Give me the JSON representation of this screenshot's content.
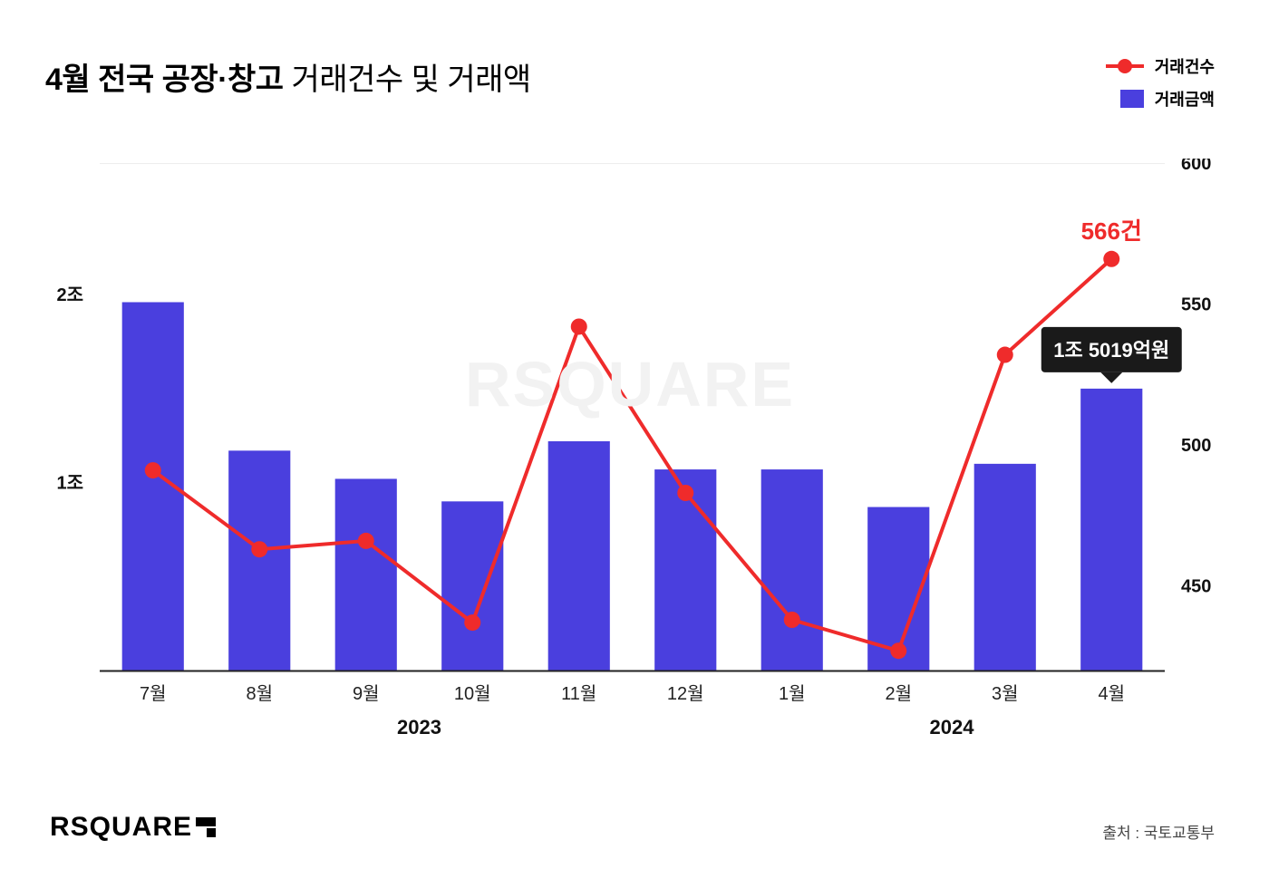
{
  "title": {
    "bold": "4월 전국 공장·창고",
    "light": " 거래건수 및 거래액"
  },
  "legend": {
    "count_label": "거래건수",
    "amount_label": "거래금액"
  },
  "watermark": "RSQUARE",
  "brand": "RSQUARE",
  "source": "출처 : 국토교통부",
  "chart": {
    "type": "bar+line",
    "bar_color": "#4a3fde",
    "line_color": "#ef2b2b",
    "axis_color": "#222222",
    "grid_color": "#ededed",
    "tick_color": "#666666",
    "bg": "#ffffff",
    "label_fontsize": 20,
    "tick_fontsize": 20,
    "year_fontsize": 22,
    "bar_width_ratio": 0.58,
    "left_axis": {
      "ticks": [
        0,
        1,
        2
      ],
      "tick_labels": [
        "",
        "1조",
        "2조"
      ],
      "min": 0,
      "max": 2.7
    },
    "right_axis": {
      "ticks": [
        450,
        500,
        550,
        600
      ],
      "min": 420,
      "max": 600
    },
    "categories": [
      "7월",
      "8월",
      "9월",
      "10월",
      "11월",
      "12월",
      "1월",
      "2월",
      "3월",
      "4월"
    ],
    "year_groups": [
      {
        "label": "2023",
        "start": 0,
        "end": 5
      },
      {
        "label": "2024",
        "start": 6,
        "end": 9
      }
    ],
    "bar_values": [
      1.96,
      1.17,
      1.02,
      0.9,
      1.22,
      1.07,
      1.07,
      0.87,
      1.1,
      1.5
    ],
    "line_values": [
      491,
      463,
      466,
      437,
      542,
      483,
      438,
      427,
      532,
      566
    ],
    "callout_point": {
      "index": 9,
      "text": "566건",
      "color": "#ef2b2b",
      "fontsize": 26
    },
    "tooltip": {
      "index": 9,
      "text": "1조 5019억원",
      "bg": "#1a1a1a",
      "fg": "#ffffff",
      "fontsize": 22
    }
  }
}
